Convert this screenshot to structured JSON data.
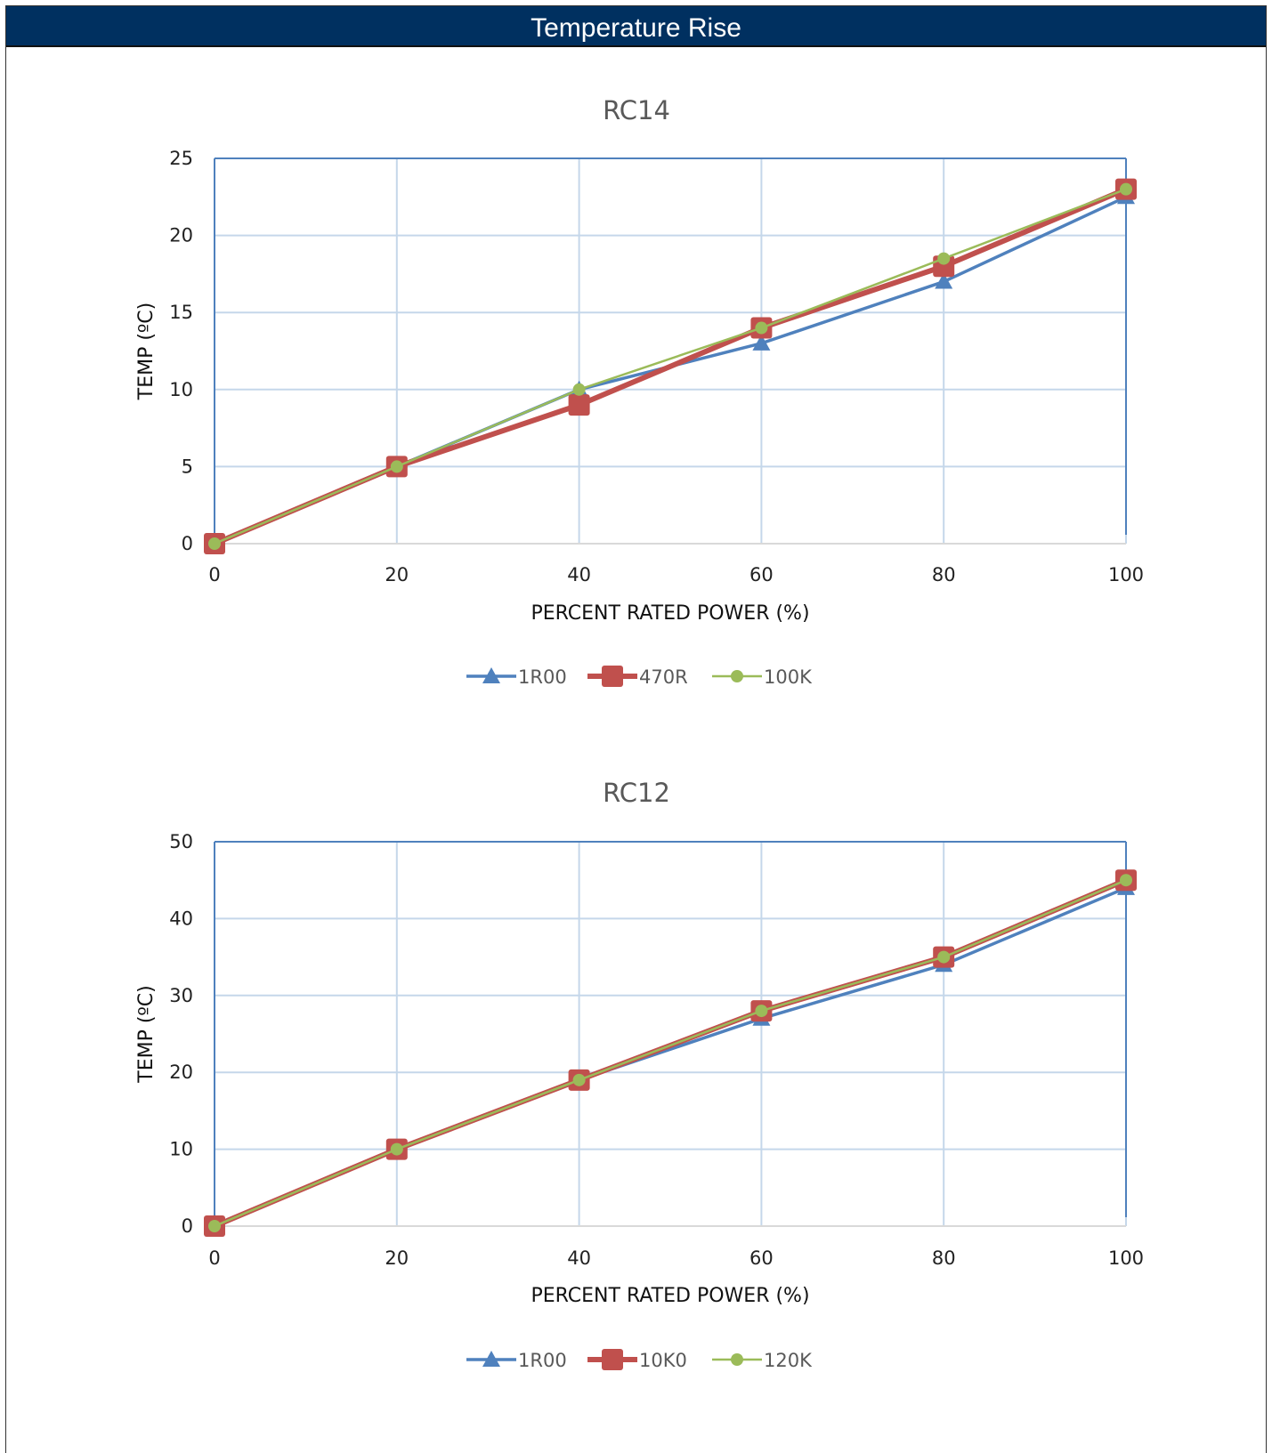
{
  "header": {
    "title": "Temperature Rise"
  },
  "colors": {
    "header_bg": "#003060",
    "series_blue": "#4F81BD",
    "series_red": "#C0504D",
    "series_green": "#9BBB59",
    "grid": "#C5D7EA",
    "plot_border": "#4F81BD"
  },
  "chart_data": [
    {
      "type": "line",
      "title": "RC14",
      "xlabel": "PERCENT RATED POWER (%)",
      "ylabel": "TEMP (ºC)",
      "x": [
        0,
        20,
        40,
        60,
        80,
        100
      ],
      "xlim": [
        0,
        100
      ],
      "ylim": [
        0,
        25
      ],
      "yticks": [
        0,
        5,
        10,
        15,
        20,
        25
      ],
      "xticks": [
        0,
        20,
        40,
        60,
        80,
        100
      ],
      "grid": true,
      "legend_position": "bottom",
      "series": [
        {
          "name": "1R00",
          "values": [
            0,
            5,
            10,
            13,
            17,
            22.5
          ],
          "color": "#4F81BD",
          "marker": "triangle"
        },
        {
          "name": "470R",
          "values": [
            0,
            5,
            9,
            14,
            18,
            23
          ],
          "color": "#C0504D",
          "marker": "square"
        },
        {
          "name": "100K",
          "values": [
            0,
            5,
            10,
            14,
            18.5,
            23
          ],
          "color": "#9BBB59",
          "marker": "circle"
        }
      ]
    },
    {
      "type": "line",
      "title": "RC12",
      "xlabel": "PERCENT RATED POWER (%)",
      "ylabel": "TEMP (ºC)",
      "x": [
        0,
        20,
        40,
        60,
        80,
        100
      ],
      "xlim": [
        0,
        100
      ],
      "ylim": [
        0,
        50
      ],
      "yticks": [
        0,
        10,
        20,
        30,
        40,
        50
      ],
      "xticks": [
        0,
        20,
        40,
        60,
        80,
        100
      ],
      "grid": true,
      "legend_position": "bottom",
      "series": [
        {
          "name": "1R00",
          "values": [
            0,
            10,
            19,
            27,
            34,
            44
          ],
          "color": "#4F81BD",
          "marker": "triangle"
        },
        {
          "name": "10K0",
          "values": [
            0,
            10,
            19,
            28,
            35,
            45
          ],
          "color": "#C0504D",
          "marker": "square"
        },
        {
          "name": "120K",
          "values": [
            0,
            10,
            19,
            28,
            35,
            45
          ],
          "color": "#9BBB59",
          "marker": "circle"
        }
      ]
    }
  ]
}
